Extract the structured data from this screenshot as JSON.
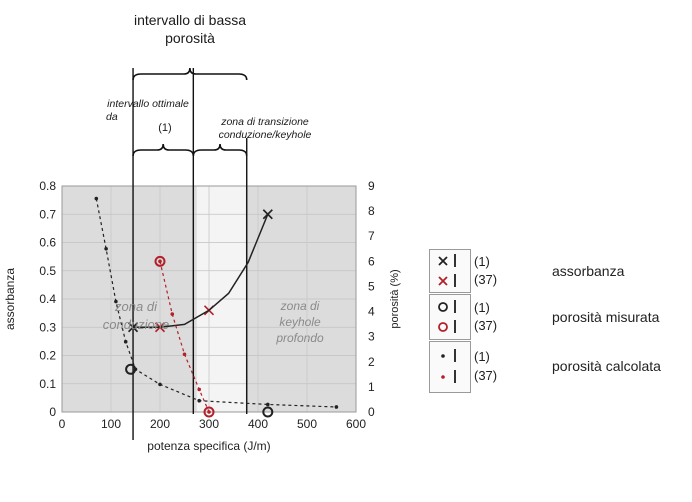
{
  "annotations": {
    "low_porosity_interval": [
      "intervallo di bassa",
      "porosità"
    ],
    "optimal_interval": [
      "intervallo ottimale",
      "da",
      "(1)"
    ],
    "transition_zone": [
      "zona di transizione",
      "conduzione/keyhole"
    ],
    "conduction_zone": [
      "zona di",
      "conduzione"
    ],
    "deep_keyhole_zone": [
      "zona di",
      "keyhole",
      "profondo"
    ]
  },
  "legend": {
    "groups": [
      {
        "label": "assorbanza",
        "codes": [
          "(1)",
          "(37)"
        ],
        "symbols": [
          "cross-black",
          "cross-red"
        ]
      },
      {
        "label": "porosità misurata",
        "codes": [
          "(1)",
          "(37)"
        ],
        "symbols": [
          "circle-black",
          "circle-red"
        ]
      },
      {
        "label": "porosità calcolata",
        "codes": [
          "(1)",
          "(37)"
        ],
        "symbols": [
          "dot-black",
          "dot-red"
        ]
      }
    ]
  },
  "chart_data": {
    "type": "scatter",
    "xlabel": "potenza specifica (J/m)",
    "ylabel": "assorbanza",
    "y2label": "porosità (%)",
    "xlim": [
      0,
      600
    ],
    "ylim": [
      0,
      0.8
    ],
    "y2lim": [
      0,
      9
    ],
    "xticks": [
      "0",
      "100",
      "200",
      "300",
      "400",
      "500",
      "600"
    ],
    "yticks": [
      "0",
      "0.1",
      "0.2",
      "0.3",
      "0.4",
      "0.5",
      "0.6",
      "0.7",
      "0.8"
    ],
    "y2ticks": [
      "0",
      "1",
      "2",
      "3",
      "4",
      "5",
      "6",
      "7",
      "8",
      "9"
    ],
    "shaded_regions_x": [
      [
        0,
        275
      ],
      [
        375,
        600
      ]
    ],
    "interval_lines_x": [
      145,
      268,
      377
    ],
    "colors": {
      "plot_bg": "#dcdcdc",
      "series_1": "#222222",
      "series_37": "#b3202a"
    },
    "series": [
      {
        "kind": "absorbance (1)",
        "marker": "x",
        "color": "#222222",
        "points": [
          [
            145,
            0.3
          ],
          [
            420,
            0.7
          ]
        ]
      },
      {
        "kind": "absorbance (37)",
        "marker": "x",
        "color": "#b3202a",
        "points": [
          [
            200,
            0.3
          ],
          [
            300,
            0.36
          ]
        ]
      },
      {
        "kind": "absorbance trend",
        "line": "solid",
        "color": "#222222",
        "points": [
          [
            145,
            0.3
          ],
          [
            200,
            0.3
          ],
          [
            250,
            0.31
          ],
          [
            300,
            0.36
          ],
          [
            340,
            0.42
          ],
          [
            380,
            0.53
          ],
          [
            420,
            0.7
          ]
        ]
      },
      {
        "kind": "measured porosity (1)",
        "marker": "circle",
        "color": "#222222",
        "axis": "y2",
        "points": [
          [
            140,
            1.7
          ],
          [
            420,
            0
          ]
        ]
      },
      {
        "kind": "measured porosity (37)",
        "marker": "circle",
        "color": "#b3202a",
        "axis": "y2",
        "points": [
          [
            200,
            6
          ],
          [
            300,
            0
          ]
        ]
      },
      {
        "kind": "calculated porosity (1)",
        "marker": "dot",
        "line": "dashed",
        "color": "#222222",
        "axis": "y2",
        "points": [
          [
            70,
            8.5
          ],
          [
            90,
            6.5
          ],
          [
            110,
            4.4
          ],
          [
            130,
            2.8
          ],
          [
            150,
            1.7
          ],
          [
            200,
            1.1
          ],
          [
            280,
            0.45
          ],
          [
            420,
            0.3
          ],
          [
            560,
            0.2
          ]
        ]
      },
      {
        "kind": "calculated porosity (37)",
        "marker": "dot",
        "line": "dashed",
        "color": "#b3202a",
        "axis": "y2",
        "points": [
          [
            200,
            6
          ],
          [
            225,
            3.9
          ],
          [
            250,
            2.3
          ],
          [
            280,
            0.9
          ],
          [
            300,
            0
          ]
        ]
      }
    ]
  }
}
